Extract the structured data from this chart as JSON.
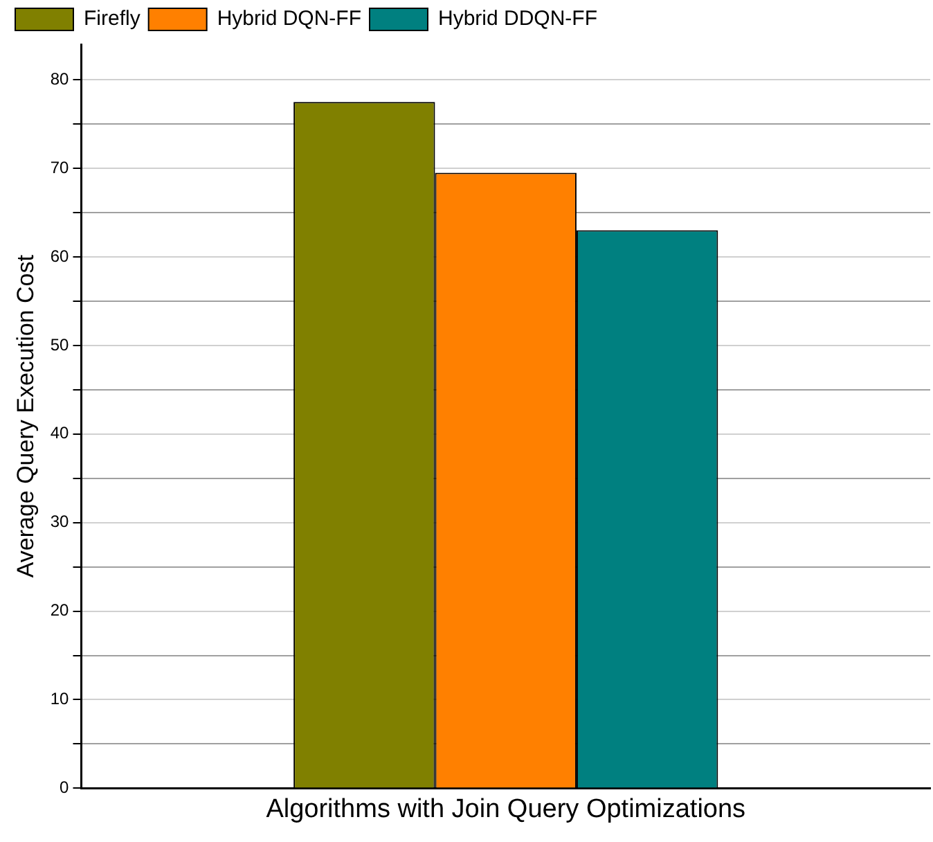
{
  "chart_data": {
    "type": "bar",
    "xlabel": "Algorithms with Join Query Optimizations",
    "ylabel": "Average Query Execution Cost",
    "categories": [
      null
    ],
    "series": [
      {
        "name": "Firefly",
        "color": "#808000",
        "values": [
          77.5
        ]
      },
      {
        "name": "Hybrid DQN-FF",
        "color": "#ff8000",
        "values": [
          69.5
        ]
      },
      {
        "name": "Hybrid DDQN-FF",
        "color": "#008080",
        "values": [
          63
        ]
      }
    ],
    "ylim": [
      0,
      84
    ],
    "yticks": [
      0,
      {
        "value": 5,
        "label": null
      },
      10,
      {
        "value": 15,
        "label": null
      },
      20,
      {
        "value": 25,
        "label": null
      },
      30,
      {
        "value": 35,
        "label": null
      },
      40,
      {
        "value": 45,
        "label": null
      },
      50,
      {
        "value": 55,
        "label": null
      },
      60,
      {
        "value": 65,
        "label": null
      },
      70,
      {
        "value": 75,
        "label": null
      },
      80
    ],
    "grid": "y",
    "legend": "top left"
  }
}
